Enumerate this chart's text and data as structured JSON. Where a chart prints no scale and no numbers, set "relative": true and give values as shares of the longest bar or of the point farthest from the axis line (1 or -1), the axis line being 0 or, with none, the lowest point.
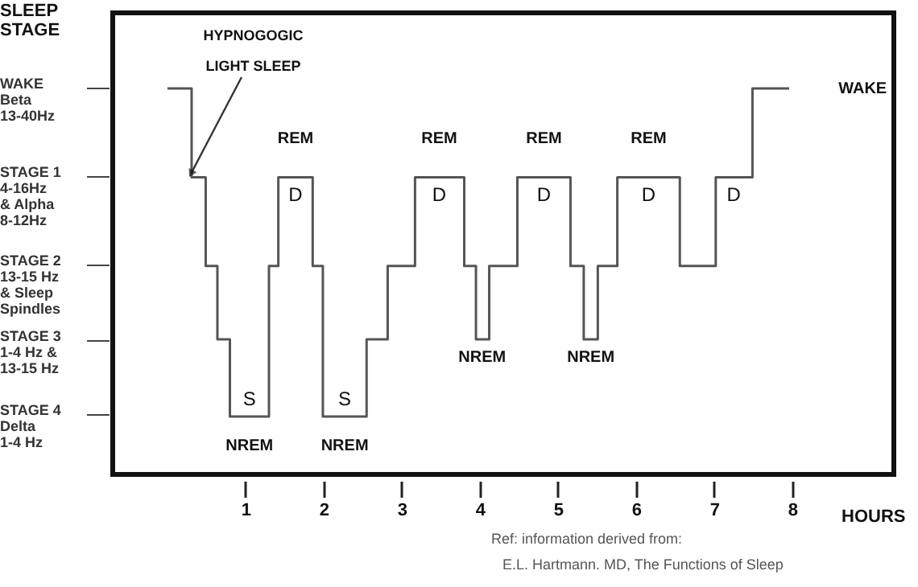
{
  "chart_data": {
    "type": "step",
    "relative": true,
    "xlabel": "HOURS",
    "ylabel": "SLEEP STAGE",
    "x": [
      0,
      0.31,
      0.49,
      0.64,
      0.8,
      1.3,
      1.42,
      1.86,
      1.99,
      2.55,
      2.82,
      3.17,
      3.8,
      3.95,
      4.12,
      4.48,
      5.16,
      5.33,
      5.51,
      5.76,
      6.56,
      7.02,
      7.49,
      7.96
    ],
    "series": [
      {
        "color": "#555555",
        "values": [
          1,
          0.77,
          0.54,
          0.35,
          0.15,
          0.54,
          0.77,
          0.54,
          0.15,
          0.35,
          0.54,
          0.77,
          0.54,
          0.35,
          0.54,
          0.77,
          0.54,
          0.35,
          0.54,
          0.77,
          0.54,
          0.77,
          1,
          1
        ]
      }
    ],
    "xlim": [
      -0.7,
      9.3
    ],
    "xticks": [
      1,
      2,
      3,
      4,
      5,
      6,
      7,
      8
    ],
    "grid": false,
    "annotations": [
      "WAKE\nBeta\n13-40Hz",
      "STAGE 1\n4-16Hz\n& Alpha\n8-12Hz",
      "STAGE 2\n13-15 Hz\n& Sleep\nSpindles",
      "STAGE 3\n1-4 Hz &\n13-15 Hz",
      "STAGE 4\nDelta\n1-4 Hz",
      "HYPNOGOGIC\nLIGHT SLEEP",
      "REM",
      "REM",
      "REM",
      "REM",
      "D",
      "D",
      "D",
      "D",
      "D",
      "S",
      "S",
      "NREM",
      "NREM",
      "NREM",
      "NREM",
      "WAKE",
      "Ref:  information derived from:",
      "E.L. Hartmann. MD, The Functions of Sleep"
    ]
  }
}
